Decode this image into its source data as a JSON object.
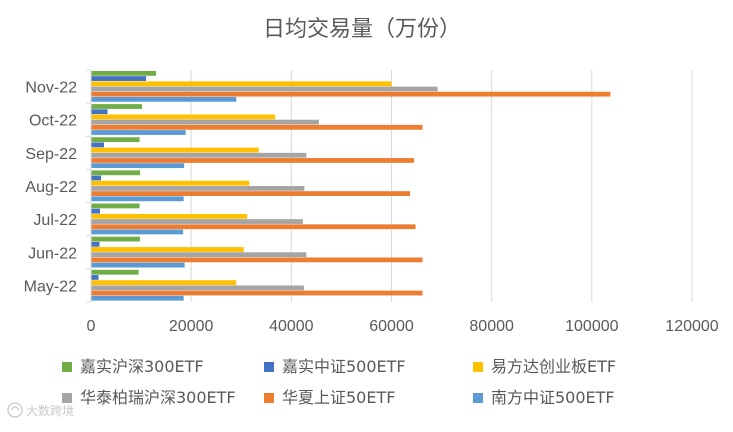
{
  "chart_data": {
    "type": "bar",
    "orientation": "horizontal",
    "title": "日均交易量（万份）",
    "categories": [
      "May-22",
      "Jun-22",
      "Jul-22",
      "Aug-22",
      "Sep-22",
      "Oct-22",
      "Nov-22"
    ],
    "series": [
      {
        "name": "嘉实沪深300ETF",
        "color": "#70ad47",
        "values": [
          9500,
          9800,
          9700,
          9800,
          9700,
          10200,
          13000
        ]
      },
      {
        "name": "嘉实中证500ETF",
        "color": "#4472c4",
        "values": [
          1500,
          1700,
          1800,
          2000,
          2600,
          3300,
          11000
        ]
      },
      {
        "name": "易方达创业板ETF",
        "color": "#ffc000",
        "values": [
          29000,
          30500,
          31200,
          31600,
          33500,
          36800,
          60000
        ]
      },
      {
        "name": "华泰柏瑞沪深300ETF",
        "color": "#a5a5a5",
        "values": [
          42500,
          43000,
          42300,
          42600,
          43000,
          45500,
          69200
        ]
      },
      {
        "name": "华夏上证50ETF",
        "color": "#ed7d31",
        "values": [
          66200,
          66200,
          64800,
          63700,
          64500,
          66200,
          103700
        ]
      },
      {
        "name": "南方中证500ETF",
        "color": "#5b9bd5",
        "values": [
          18500,
          18700,
          18400,
          18500,
          18600,
          18900,
          29000
        ]
      }
    ],
    "xlim": [
      0,
      120000
    ],
    "xticks": [
      "0",
      "20000",
      "40000",
      "60000",
      "80000",
      "100000",
      "120000"
    ],
    "grid": "vertical",
    "legend_position": "bottom"
  },
  "watermark": {
    "text": "大数跨境",
    "icon": "watermark-logo-icon"
  }
}
